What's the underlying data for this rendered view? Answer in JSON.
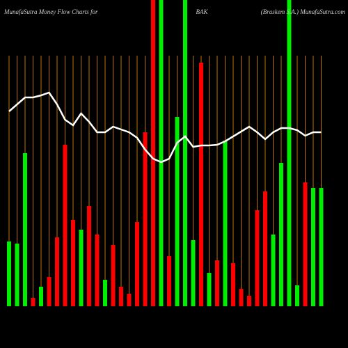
{
  "chart_data": {
    "type": "bar",
    "title": "MunafaSutra  Money Flow  Charts for",
    "symbol": "BAK",
    "subtitle": "(Braskem S.A.) MunafaSutra.com",
    "ylim": [
      0,
      440
    ],
    "values": [
      93,
      90,
      220,
      12,
      28,
      42,
      99,
      232,
      124,
      110,
      144,
      103,
      38,
      88,
      28,
      18,
      121,
      250,
      440,
      440,
      72,
      272,
      440,
      95,
      350,
      48,
      66,
      238,
      62,
      25,
      15,
      138,
      165,
      103,
      206,
      440,
      30,
      178,
      170,
      170
    ],
    "bar_colors": [
      "#00ee00",
      "#00ee00",
      "#00ee00",
      "#ff0000",
      "#00ee00",
      "#ff0000",
      "#ff0000",
      "#ff0000",
      "#ff0000",
      "#00ee00",
      "#ff0000",
      "#ff0000",
      "#00ee00",
      "#ff0000",
      "#ff0000",
      "#ff0000",
      "#ff0000",
      "#ff0000",
      "#ff0000",
      "#00ee00",
      "#ff0000",
      "#00ee00",
      "#00ee00",
      "#00ee00",
      "#ff0000",
      "#00ee00",
      "#ff0000",
      "#00ee00",
      "#ff0000",
      "#ff0000",
      "#ff0000",
      "#ff0000",
      "#ff0000",
      "#00ee00",
      "#00ee00",
      "#00ee00",
      "#00ee00",
      "#ff0000",
      "#00ee00",
      "#00ee00"
    ],
    "line": {
      "color": "#ffffff",
      "values": [
        280,
        290,
        300,
        300,
        303,
        307,
        290,
        268,
        260,
        277,
        265,
        250,
        250,
        258,
        254,
        250,
        242,
        225,
        212,
        207,
        212,
        235,
        244,
        229,
        231,
        231,
        232,
        237,
        244,
        251,
        258,
        250,
        240,
        250,
        256,
        256,
        253,
        245,
        250,
        250
      ]
    },
    "gridline_color": "#b87400"
  }
}
